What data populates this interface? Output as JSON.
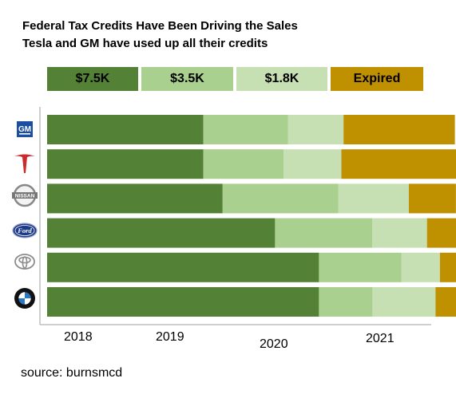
{
  "title": "Federal Tax Credits Have Been Driving the Sales",
  "subtitle": "Tesla and GM have used up all their credits",
  "source": "source:  burnsmcd",
  "colors": {
    "credit_7_5k": "#538135",
    "credit_3_5k": "#a9d08e",
    "credit_1_8k": "#c6e0b4",
    "expired": "#bf9000",
    "axis": "#bfbfbf"
  },
  "legend": [
    {
      "label": "$7.5K",
      "color": "#538135"
    },
    {
      "label": "$3.5K",
      "color": "#a9d08e"
    },
    {
      "label": "$1.8K",
      "color": "#c6e0b4"
    },
    {
      "label": "Expired",
      "color": "#bf9000"
    }
  ],
  "chart_data": {
    "type": "bar",
    "orientation": "horizontal-stacked-timeline",
    "x_unit": "year",
    "xlim": [
      2017.5,
      2021.5
    ],
    "ticks": [
      {
        "label": "2018",
        "value": 2018.0
      },
      {
        "label": "2019",
        "value": 2018.95
      },
      {
        "label": "2020",
        "value": 2019.95
      },
      {
        "label": "2021",
        "value": 2020.92
      }
    ],
    "categories": [
      "GM",
      "Tesla",
      "Nissan",
      "Ford",
      "Toyota",
      "BMW"
    ],
    "category_icons": [
      "gm-logo-icon",
      "tesla-logo-icon",
      "nissan-logo-icon",
      "ford-logo-icon",
      "toyota-logo-icon",
      "bmw-logo-icon"
    ],
    "series": [
      {
        "name": "$7.5K",
        "color": "#538135",
        "values": [
          [
            2017.54,
            2019.0
          ],
          [
            2017.54,
            2019.0
          ],
          [
            2017.54,
            2019.18
          ],
          [
            2017.54,
            2019.67
          ],
          [
            2017.54,
            2020.08
          ],
          [
            2017.54,
            2020.08
          ]
        ]
      },
      {
        "name": "$3.5K",
        "color": "#a9d08e",
        "values": [
          [
            2019.0,
            2019.79
          ],
          [
            2019.0,
            2019.75
          ],
          [
            2019.18,
            2020.26
          ],
          [
            2019.67,
            2020.58
          ],
          [
            2020.08,
            2020.85
          ],
          [
            2020.08,
            2020.58
          ]
        ]
      },
      {
        "name": "$1.8K",
        "color": "#c6e0b4",
        "values": [
          [
            2019.79,
            2020.31
          ],
          [
            2019.75,
            2020.29
          ],
          [
            2020.26,
            2020.92
          ],
          [
            2020.58,
            2021.09
          ],
          [
            2020.85,
            2021.21
          ],
          [
            2020.58,
            2021.17
          ]
        ]
      },
      {
        "name": "Expired",
        "color": "#bf9000",
        "values": [
          [
            2020.31,
            2021.35
          ],
          [
            2020.29,
            2021.37
          ],
          [
            2020.92,
            2021.36
          ],
          [
            2021.09,
            2021.56
          ],
          [
            2021.21,
            2021.57
          ],
          [
            2021.17,
            2021.53
          ]
        ]
      }
    ]
  }
}
